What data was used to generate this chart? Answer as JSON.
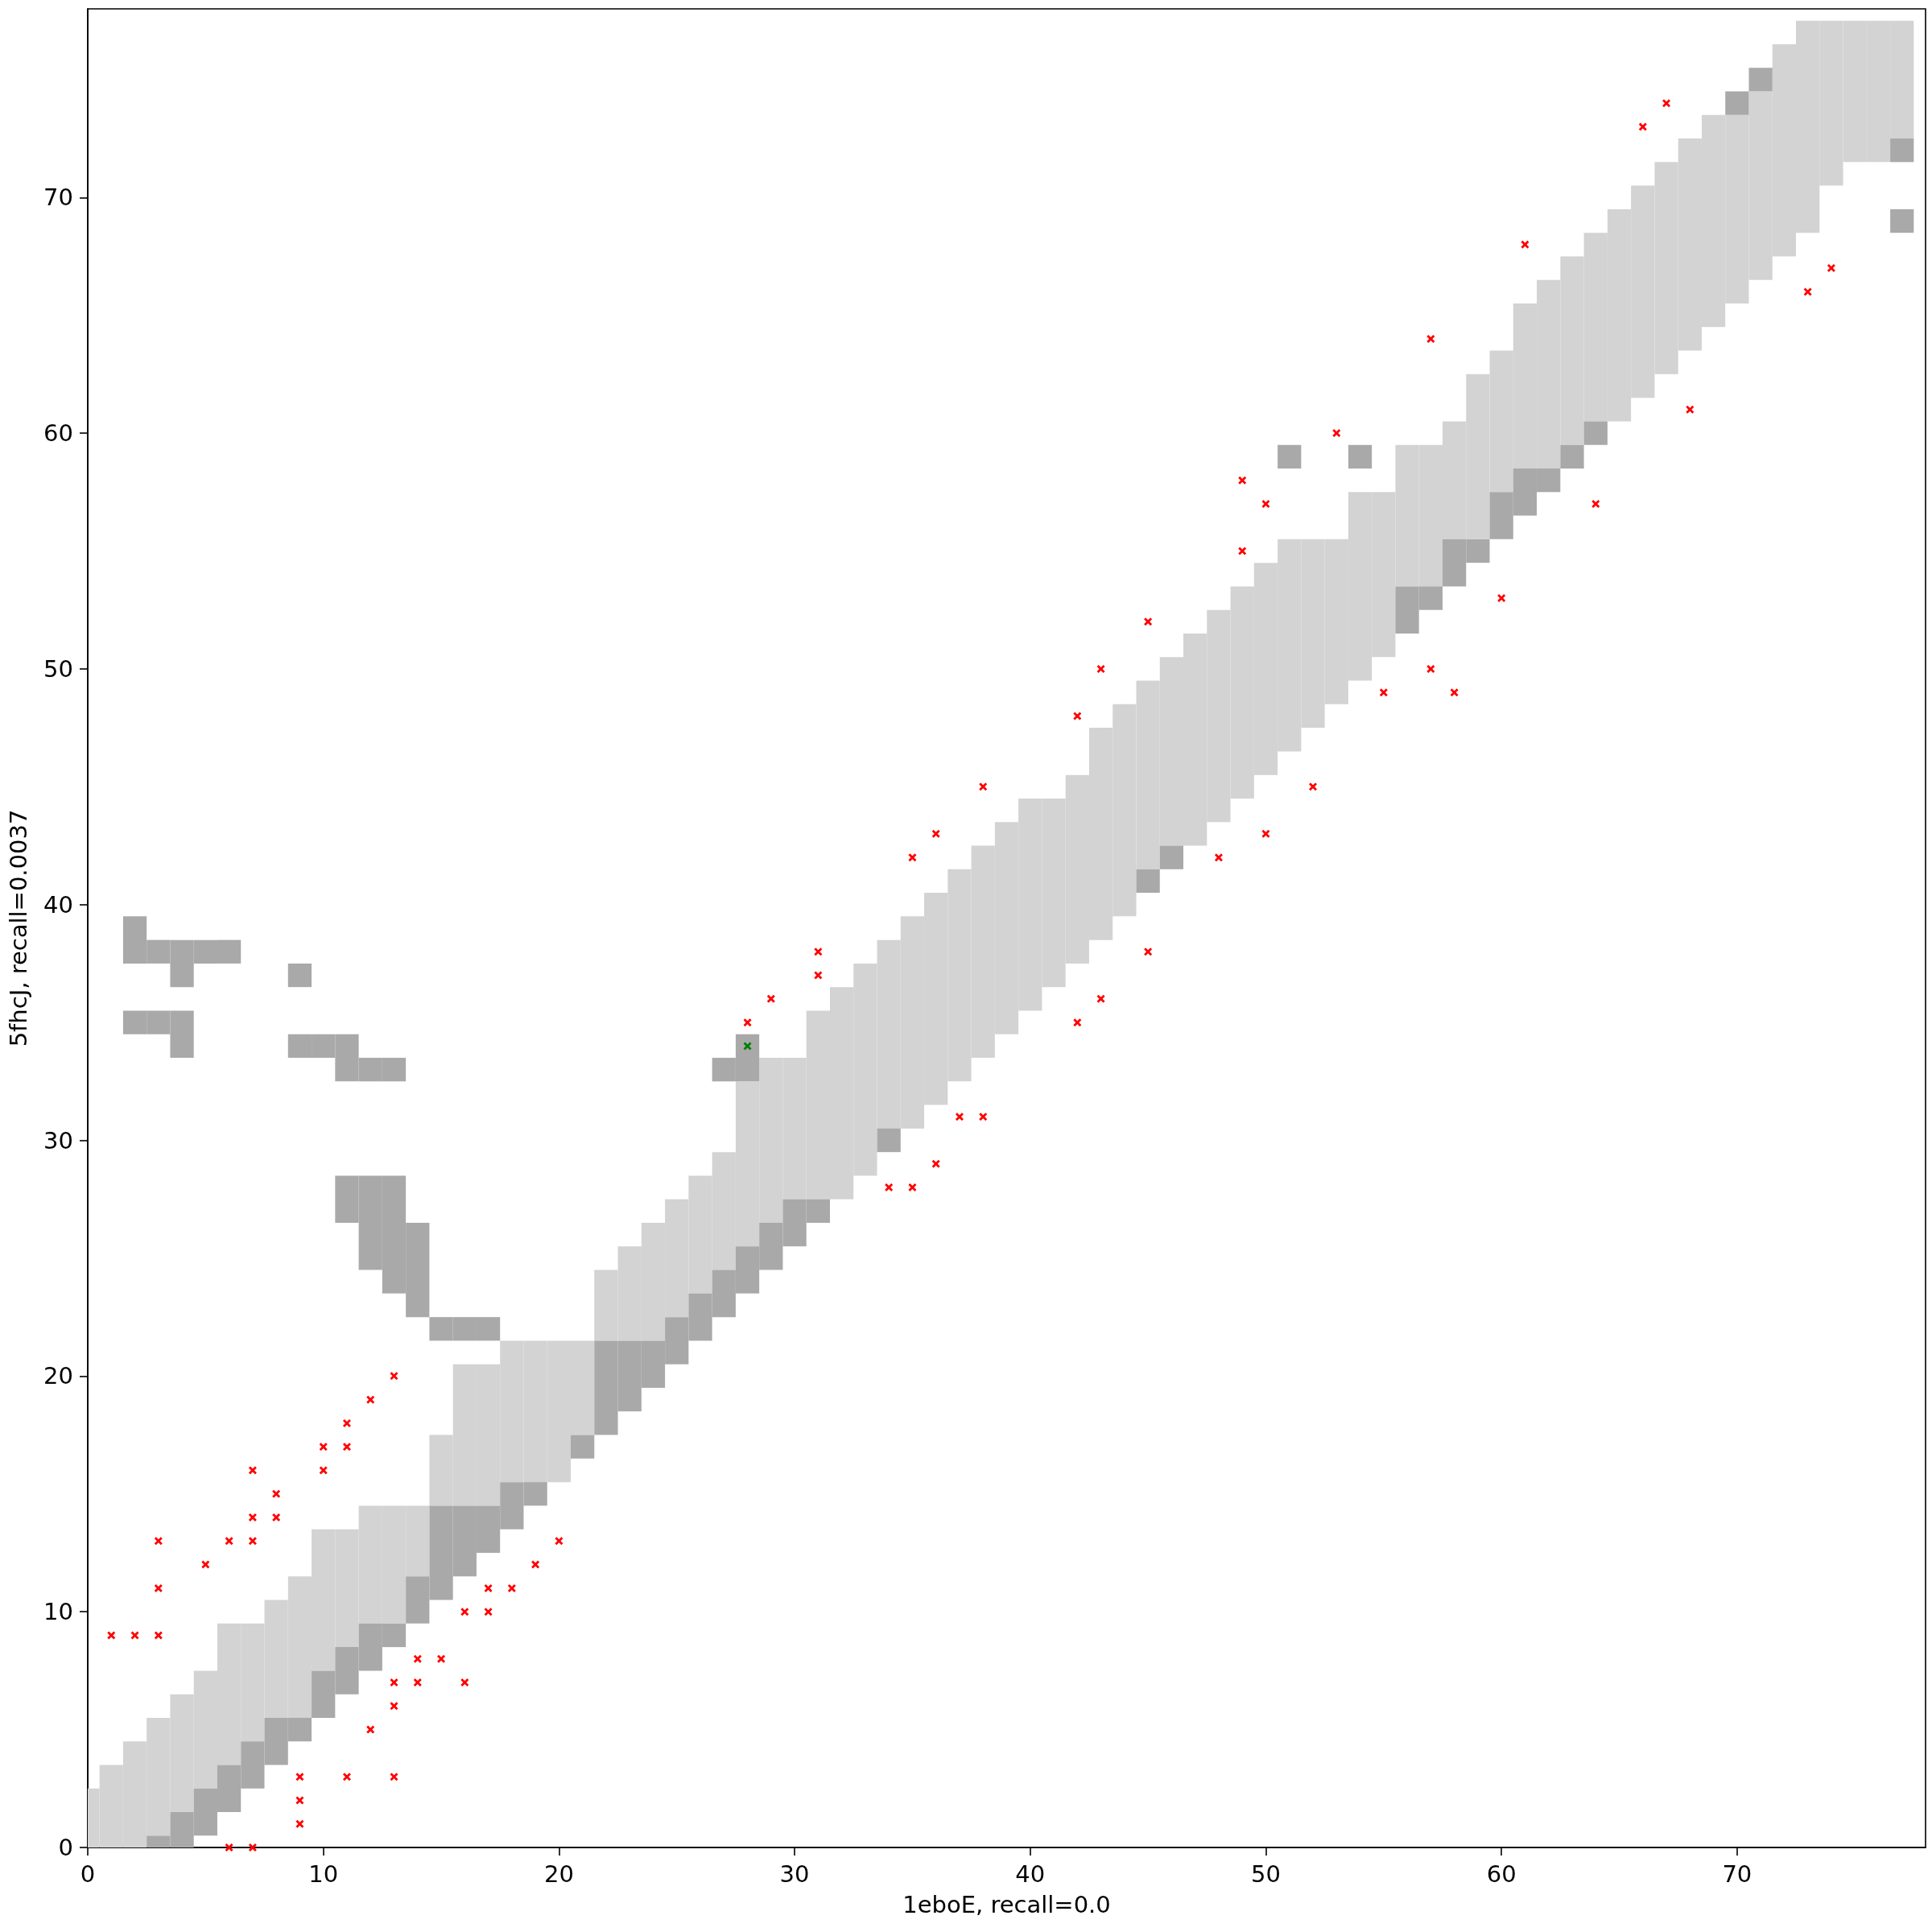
{
  "chart_data": {
    "type": "bar",
    "xlabel": "1eboE, recall=0.0",
    "ylabel": "5fhcJ, recall=0.0037",
    "xlim": [
      0,
      78
    ],
    "ylim": [
      0,
      78
    ],
    "xticks": [
      0,
      10,
      20,
      30,
      40,
      50,
      60,
      70
    ],
    "yticks": [
      0,
      10,
      20,
      30,
      40,
      50,
      60,
      70
    ],
    "marker": "cross",
    "series": [
      {
        "color": "#d3d3d3",
        "x": [
          0,
          1,
          2,
          3,
          4,
          5,
          6,
          7,
          8,
          9,
          10,
          11,
          12,
          13,
          14,
          15,
          16,
          17,
          18,
          19,
          20,
          21,
          22,
          23,
          24,
          25,
          26,
          27,
          28,
          29,
          30,
          31,
          32,
          33,
          34,
          35,
          36,
          37,
          38,
          39,
          40,
          41,
          42,
          43,
          44,
          45,
          46,
          47,
          48,
          49,
          50,
          51,
          52,
          53,
          54,
          55,
          56,
          57,
          58,
          59,
          60,
          61,
          62,
          63,
          64,
          65,
          66,
          67,
          68,
          69,
          70,
          71,
          72,
          73,
          74,
          75,
          76,
          77
        ],
        "base": [
          0,
          0,
          0,
          0.5,
          1.5,
          2.5,
          3.5,
          4.5,
          5.5,
          5.5,
          7.5,
          8.5,
          9.5,
          9.5,
          11.5,
          14.5,
          14.5,
          14.5,
          15.5,
          15.5,
          15.5,
          17.5,
          21.5,
          21.5,
          21.5,
          22.5,
          23.5,
          24.5,
          25.5,
          26.5,
          27.5,
          27.5,
          27.5,
          28.5,
          30.5,
          30.5,
          31.5,
          32.5,
          33.5,
          34.5,
          35.5,
          36.5,
          37.5,
          38.5,
          39.5,
          41.5,
          42.5,
          42.5,
          43.5,
          44.5,
          45.5,
          46.5,
          47.5,
          48.5,
          49.5,
          50.5,
          53.5,
          53.5,
          55.5,
          55.5,
          57.5,
          58.5,
          58.5,
          59.5,
          60.5,
          60.5,
          61.5,
          62.5,
          63.5,
          64.5,
          65.5,
          66.5,
          67.5,
          68.5,
          70.5,
          71.5,
          71.5,
          72.5
        ],
        "values": [
          2.5,
          3.5,
          4.5,
          5,
          5,
          5,
          6,
          5,
          5,
          6,
          6,
          5,
          5,
          5,
          3,
          3,
          6,
          6,
          6,
          6,
          6,
          4,
          3,
          4,
          5,
          5,
          5,
          5,
          7,
          7,
          6,
          8,
          9,
          9,
          8,
          9,
          9,
          9,
          9,
          9,
          9,
          8,
          8,
          9,
          9,
          8,
          8,
          9,
          9,
          9,
          9,
          9,
          8,
          7,
          8,
          7,
          6,
          6,
          5,
          7,
          6,
          7,
          8,
          8,
          8,
          9,
          9,
          9,
          9,
          9,
          8,
          8,
          9,
          9,
          7,
          6,
          6,
          5
        ]
      },
      {
        "color": "#a9a9a9",
        "x": [
          2,
          3,
          4,
          5,
          6,
          7,
          8,
          9,
          10,
          11,
          12,
          13,
          14,
          15,
          16,
          17,
          18,
          19,
          21,
          22,
          23,
          24,
          25,
          26,
          27,
          28,
          29,
          30,
          31,
          34,
          45,
          46,
          51,
          54,
          56,
          57,
          58,
          59,
          60,
          61,
          62,
          63,
          64,
          70,
          71,
          77
        ],
        "base": [
          34.5,
          0,
          0,
          0.5,
          1.5,
          2.5,
          3.5,
          4.5,
          5.5,
          6.5,
          7.5,
          8.5,
          9.5,
          10.5,
          11.5,
          12.5,
          13.5,
          14.5,
          16.5,
          17.5,
          18.5,
          19.5,
          20.5,
          21.5,
          22.5,
          23.5,
          24.5,
          25.5,
          26.5,
          29.5,
          40.5,
          41.5,
          58.5,
          58.5,
          51.5,
          52.5,
          53.5,
          54.5,
          55.5,
          56.5,
          57.5,
          58.5,
          59.5,
          73.5,
          74.5,
          68.5
        ],
        "values": [
          1,
          0.5,
          1.5,
          2,
          2,
          2,
          2,
          1,
          2,
          2,
          2,
          1,
          2,
          4,
          3,
          2,
          2,
          1,
          1,
          4,
          3,
          2,
          2,
          2,
          2,
          2,
          2,
          2,
          1,
          1,
          1,
          1,
          1,
          1,
          2,
          1,
          2,
          1,
          2,
          2,
          1,
          1,
          1,
          1,
          1,
          1
        ]
      },
      {
        "color": "#a9a9a9",
        "x": [
          2,
          3,
          4,
          5,
          6,
          9,
          10,
          11,
          12,
          13,
          14,
          15,
          16,
          17,
          27,
          28,
          77
        ],
        "base": [
          37.5,
          34.5,
          33.5,
          37.5,
          37.5,
          33.5,
          33.5,
          26.5,
          24.5,
          23.5,
          22.5,
          21.5,
          21.5,
          21.5,
          32.5,
          32.5,
          71.5
        ],
        "values": [
          2,
          1,
          2,
          1,
          1,
          1,
          1,
          2,
          4,
          5,
          4,
          1,
          1,
          1,
          1,
          2,
          1
        ]
      },
      {
        "color": "#a9a9a9",
        "x": [
          3,
          4,
          9,
          11,
          12,
          13
        ],
        "base": [
          37.5,
          36.5,
          36.5,
          32.5,
          32.5,
          32.5
        ],
        "values": [
          1,
          2,
          1,
          2,
          1,
          1
        ]
      },
      {
        "type": "scatter",
        "color": "#ff0000",
        "x": [
          1,
          2,
          3,
          3,
          3,
          5,
          6,
          7,
          7,
          7,
          8,
          8,
          10,
          10,
          11,
          11,
          12,
          13,
          9,
          9,
          9,
          6,
          7,
          11,
          13,
          12,
          13,
          13,
          14,
          14,
          15,
          16,
          16,
          17,
          17,
          18,
          19,
          20,
          28,
          29,
          31,
          31,
          35,
          36,
          38,
          42,
          43,
          45,
          34,
          35,
          36,
          37,
          38,
          42,
          43,
          45,
          48,
          50,
          52,
          49,
          49,
          50,
          53,
          55,
          57,
          58,
          60,
          57,
          61,
          64,
          66,
          67,
          68,
          73,
          74
        ],
        "values": [
          9,
          9,
          9,
          11,
          13,
          12,
          13,
          13,
          14,
          16,
          14,
          15,
          16,
          17,
          17,
          18,
          19,
          20,
          3,
          2,
          1,
          0,
          0,
          3,
          3,
          5,
          6,
          7,
          7,
          8,
          8,
          7,
          10,
          10,
          11,
          11,
          12,
          13,
          35,
          36,
          37,
          38,
          42,
          43,
          45,
          48,
          50,
          52,
          28,
          28,
          29,
          31,
          31,
          35,
          36,
          38,
          42,
          43,
          45,
          55,
          58,
          57,
          60,
          49,
          50,
          49,
          53,
          64,
          68,
          57,
          73,
          74,
          61,
          66,
          67
        ]
      },
      {
        "type": "scatter",
        "color": "#008000",
        "x": [
          28
        ],
        "values": [
          34
        ]
      }
    ]
  }
}
